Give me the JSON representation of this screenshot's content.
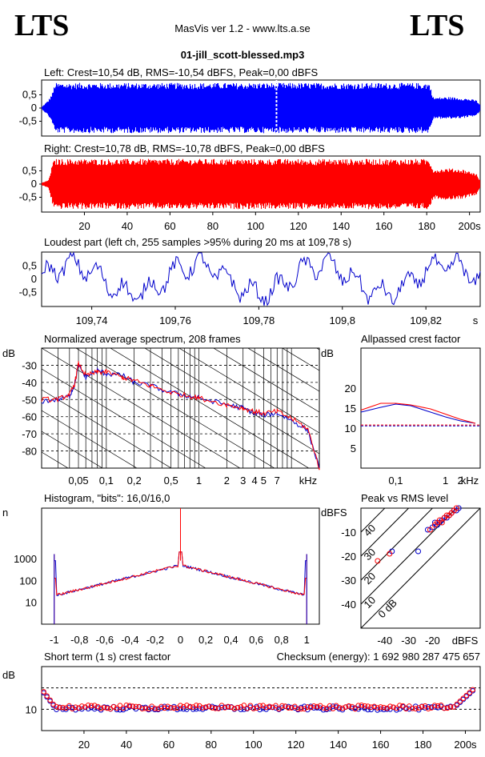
{
  "header": {
    "logo_left": "LTS",
    "logo_right": "LTS",
    "app_title": "MasVis ver 1.2 - www.lts.a.se",
    "file_name": "01-jill_scott-blessed.mp3"
  },
  "chart_data": [
    {
      "id": "left_waveform",
      "type": "area",
      "title": "Left: Crest=10,54 dB, RMS=-10,54 dBFS, Peak=0,00 dBFS",
      "color": "#0000ff",
      "ylim": [
        -1,
        1
      ],
      "xlim": [
        0,
        205
      ],
      "yticks": [
        "0,5",
        "0",
        "-0,5"
      ],
      "envelope": [
        [
          0,
          0.05
        ],
        [
          3,
          0.3
        ],
        [
          5,
          0.6
        ],
        [
          6,
          0.95
        ],
        [
          181,
          0.95
        ],
        [
          183,
          0.4
        ],
        [
          190,
          0.42
        ],
        [
          197,
          0.38
        ],
        [
          203,
          0.3
        ],
        [
          205,
          0.1
        ]
      ],
      "marker_x": 109.78
    },
    {
      "id": "right_waveform",
      "type": "area",
      "title": "Right: Crest=10,78 dB, RMS=-10,78 dBFS, Peak=0,00 dBFS",
      "color": "#ff0000",
      "ylim": [
        -1,
        1
      ],
      "xlim": [
        0,
        205
      ],
      "yticks": [
        "0,5",
        "0",
        "-0,5"
      ],
      "envelope": [
        [
          0,
          0.05
        ],
        [
          3,
          0.15
        ],
        [
          5,
          0.8
        ],
        [
          6,
          0.95
        ],
        [
          181,
          0.95
        ],
        [
          183,
          0.55
        ],
        [
          190,
          0.6
        ],
        [
          197,
          0.55
        ],
        [
          203,
          0.4
        ],
        [
          205,
          0.1
        ]
      ],
      "xticks": [
        "20",
        "40",
        "60",
        "80",
        "100",
        "120",
        "140",
        "160",
        "180",
        "200s"
      ]
    },
    {
      "id": "loudest_part",
      "type": "line",
      "title": "Loudest part (left  ch, 255 samples >95% during 20 ms at 109,78 s)",
      "color": "#0000cc",
      "xlim": [
        109.728,
        109.833
      ],
      "ylim": [
        -1,
        1
      ],
      "yticks": [
        "0,5",
        "0",
        "-0,5"
      ],
      "xticks": [
        "109,74",
        "109,76",
        "109,78",
        "109,8",
        "109,82",
        "s"
      ]
    },
    {
      "id": "avg_spectrum",
      "type": "line",
      "title": "Normalized average spectrum, 208 frames",
      "ylabel": "dB",
      "xlabel": "kHz",
      "ylim": [
        -90,
        -20
      ],
      "yticks": [
        "-30",
        "-40",
        "-50",
        "-60",
        "-70",
        "-80"
      ],
      "xticks": [
        "0,05",
        "0,1",
        "0,2",
        "0,5",
        "1",
        "2",
        "3",
        "4",
        "5",
        "7",
        "kHz"
      ],
      "series": [
        {
          "name": "left",
          "color": "#0000cc",
          "points": [
            [
              0.02,
              -51
            ],
            [
              0.03,
              -50
            ],
            [
              0.04,
              -48
            ],
            [
              0.045,
              -42
            ],
            [
              0.05,
              -30
            ],
            [
              0.06,
              -37
            ],
            [
              0.08,
              -33
            ],
            [
              0.1,
              -35
            ],
            [
              0.15,
              -36
            ],
            [
              0.2,
              -40
            ],
            [
              0.3,
              -42
            ],
            [
              0.5,
              -46
            ],
            [
              0.8,
              -48
            ],
            [
              1,
              -49
            ],
            [
              2,
              -53
            ],
            [
              3,
              -55
            ],
            [
              4,
              -58
            ],
            [
              5,
              -59
            ],
            [
              7,
              -58
            ],
            [
              10,
              -62
            ],
            [
              15,
              -68
            ],
            [
              20,
              -90
            ]
          ]
        },
        {
          "name": "right",
          "color": "#ff0000",
          "points": [
            [
              0.02,
              -50
            ],
            [
              0.03,
              -50
            ],
            [
              0.04,
              -47
            ],
            [
              0.045,
              -42
            ],
            [
              0.05,
              -29
            ],
            [
              0.06,
              -36
            ],
            [
              0.08,
              -34
            ],
            [
              0.1,
              -34
            ],
            [
              0.15,
              -37
            ],
            [
              0.2,
              -39
            ],
            [
              0.3,
              -42
            ],
            [
              0.5,
              -46
            ],
            [
              0.8,
              -48
            ],
            [
              1,
              -49
            ],
            [
              2,
              -53
            ],
            [
              3,
              -55
            ],
            [
              4,
              -57
            ],
            [
              5,
              -58
            ],
            [
              7,
              -57
            ],
            [
              10,
              -61
            ],
            [
              15,
              -67
            ],
            [
              20,
              -90
            ]
          ]
        }
      ]
    },
    {
      "id": "allpassed_crest",
      "type": "line",
      "title": "Allpassed crest factor",
      "ylabel": "dB",
      "xlabel": "kHz",
      "ylim": [
        0,
        30
      ],
      "yticks": [
        "20",
        "15",
        "10",
        "5"
      ],
      "xticks": [
        "0,1",
        "1",
        "2",
        "kHz"
      ],
      "series": [
        {
          "name": "left",
          "color": "#0000cc",
          "points": [
            [
              0.02,
              14
            ],
            [
              0.05,
              15.2
            ],
            [
              0.1,
              16
            ],
            [
              0.2,
              15.6
            ],
            [
              0.5,
              14
            ],
            [
              1,
              12.8
            ],
            [
              2,
              11.8
            ],
            [
              4,
              11.2
            ]
          ]
        },
        {
          "name": "right",
          "color": "#ff0000",
          "points": [
            [
              0.02,
              14.5
            ],
            [
              0.05,
              16.2
            ],
            [
              0.1,
              16.2
            ],
            [
              0.2,
              15.8
            ],
            [
              0.5,
              14.8
            ],
            [
              1,
              13.5
            ],
            [
              2,
              12.2
            ],
            [
              4,
              11.2
            ]
          ]
        }
      ],
      "reference_lines": [
        {
          "color": "#0000cc",
          "value": 10.54
        },
        {
          "color": "#ff0000",
          "value": 10.78
        }
      ]
    },
    {
      "id": "histogram",
      "type": "line",
      "title": "Histogram, \"bits\": 16,0/16,0",
      "ylabel": "n",
      "xlim": [
        -1.1,
        1.1
      ],
      "yticks": [
        "1000",
        "100",
        "10"
      ],
      "xticks": [
        "-1",
        "-0,8",
        "-0,6",
        "-0,4",
        "-0,2",
        "0",
        "0,2",
        "0,4",
        "0,6",
        "0,8",
        "1"
      ]
    },
    {
      "id": "peak_vs_rms",
      "type": "scatter",
      "title": "Peak vs RMS level",
      "ylabel": "dBFS",
      "xlabel": "dBFS",
      "xlim": [
        -50,
        0
      ],
      "ylim": [
        -50,
        0
      ],
      "yticks": [
        "-10",
        "-20",
        "-30",
        "-40"
      ],
      "xticks": [
        "-40",
        "-30",
        "-20",
        "dBFS"
      ],
      "diagonal_labels": [
        "40",
        "30",
        "20",
        "10",
        "0 dB"
      ],
      "series": [
        {
          "name": "left",
          "color": "#0000cc",
          "points": [
            [
              -37,
              -18
            ],
            [
              -26,
              -18
            ],
            [
              -22,
              -9
            ],
            [
              -20,
              -8
            ],
            [
              -19,
              -6
            ],
            [
              -18,
              -7
            ],
            [
              -17,
              -6
            ],
            [
              -16,
              -5
            ],
            [
              -15,
              -4
            ],
            [
              -14,
              -4
            ],
            [
              -13,
              -3
            ],
            [
              -12,
              -2
            ],
            [
              -11,
              -1
            ],
            [
              -10,
              -1
            ],
            [
              -9,
              0
            ]
          ]
        },
        {
          "name": "right",
          "color": "#ff0000",
          "points": [
            [
              -43,
              -22
            ],
            [
              -38,
              -19
            ],
            [
              -21,
              -9
            ],
            [
              -19,
              -7
            ],
            [
              -18,
              -6
            ],
            [
              -17,
              -5
            ],
            [
              -16,
              -6
            ],
            [
              -15,
              -4
            ],
            [
              -14,
              -3
            ],
            [
              -13,
              -3
            ],
            [
              -12,
              -2
            ],
            [
              -11,
              -1
            ],
            [
              -10,
              0
            ]
          ]
        }
      ]
    },
    {
      "id": "short_term_crest",
      "type": "scatter",
      "title": "Short term (1 s) crest factor",
      "checksum_label": "Checksum (energy):  1 692 980 287 475 657",
      "ylabel": "dB",
      "xlim": [
        0,
        207
      ],
      "ylim": [
        0,
        30
      ],
      "yticks": [
        "10"
      ],
      "reference_lines": [
        20,
        10
      ],
      "xticks": [
        "20",
        "40",
        "60",
        "80",
        "100",
        "120",
        "140",
        "160",
        "180",
        "200s"
      ]
    }
  ]
}
